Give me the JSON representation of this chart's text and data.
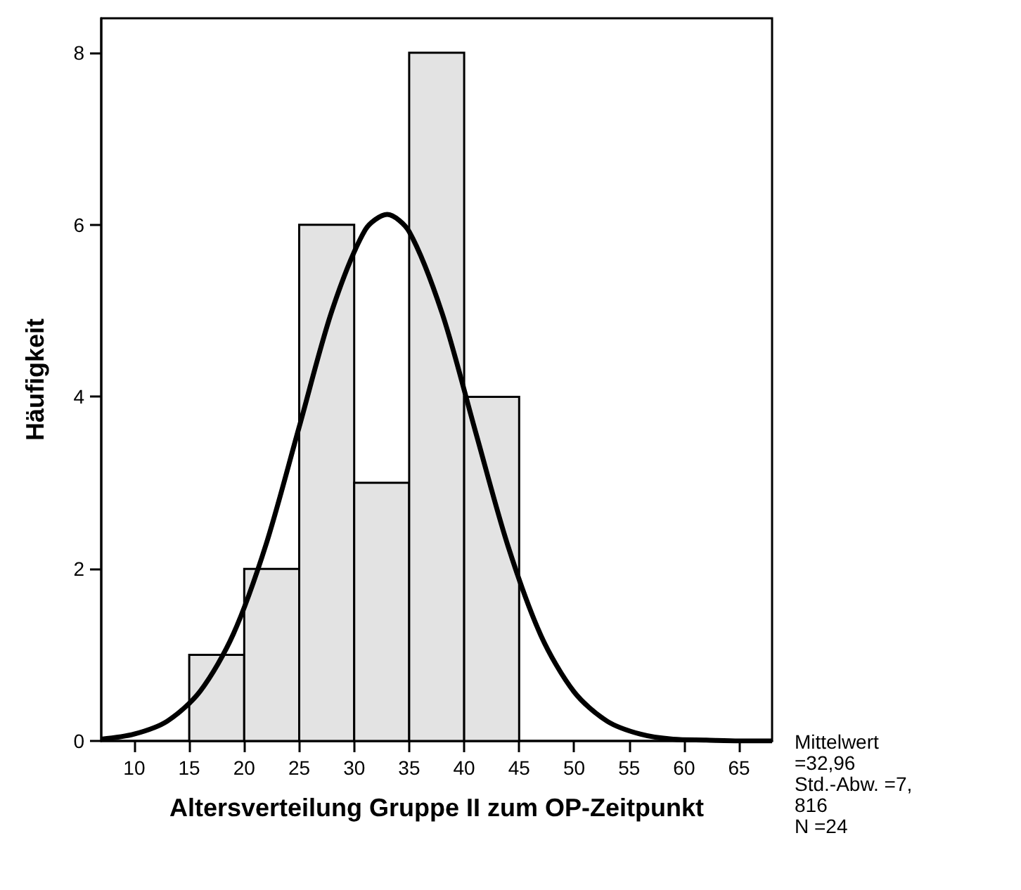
{
  "chart_data": {
    "type": "histogram",
    "xlabel": "Altersverteilung Gruppe II zum OP-Zeitpunkt",
    "ylabel": "Häufigkeit",
    "bins": [
      15,
      20,
      25,
      30,
      35,
      40,
      45
    ],
    "values": [
      1,
      2,
      6,
      3,
      8,
      4
    ],
    "color": "#e3e3e3",
    "xlim": [
      7,
      68
    ],
    "xticks": [
      10,
      15,
      20,
      25,
      30,
      35,
      40,
      45,
      50,
      55,
      60,
      65
    ],
    "ylim": [
      0,
      8.4
    ],
    "yticks": [
      0,
      2,
      4,
      6,
      8
    ],
    "grid": false,
    "series": [
      {
        "type": "line",
        "color": "#000000",
        "x": [
          7,
          10,
          13,
          16,
          19,
          22,
          25,
          28,
          31,
          33,
          35,
          38,
          41,
          44,
          47,
          50,
          53,
          56,
          59,
          62,
          65,
          68
        ],
        "values": [
          0.02,
          0.08,
          0.23,
          0.58,
          1.24,
          2.29,
          3.65,
          5.01,
          5.94,
          6.12,
          5.92,
          4.97,
          3.61,
          2.26,
          1.22,
          0.57,
          0.23,
          0.08,
          0.02,
          0.01,
          0,
          0
        ]
      }
    ],
    "annotations": [
      "Mittelwert =32,96",
      "Std.-Abw. =7,816",
      "N =24"
    ]
  }
}
